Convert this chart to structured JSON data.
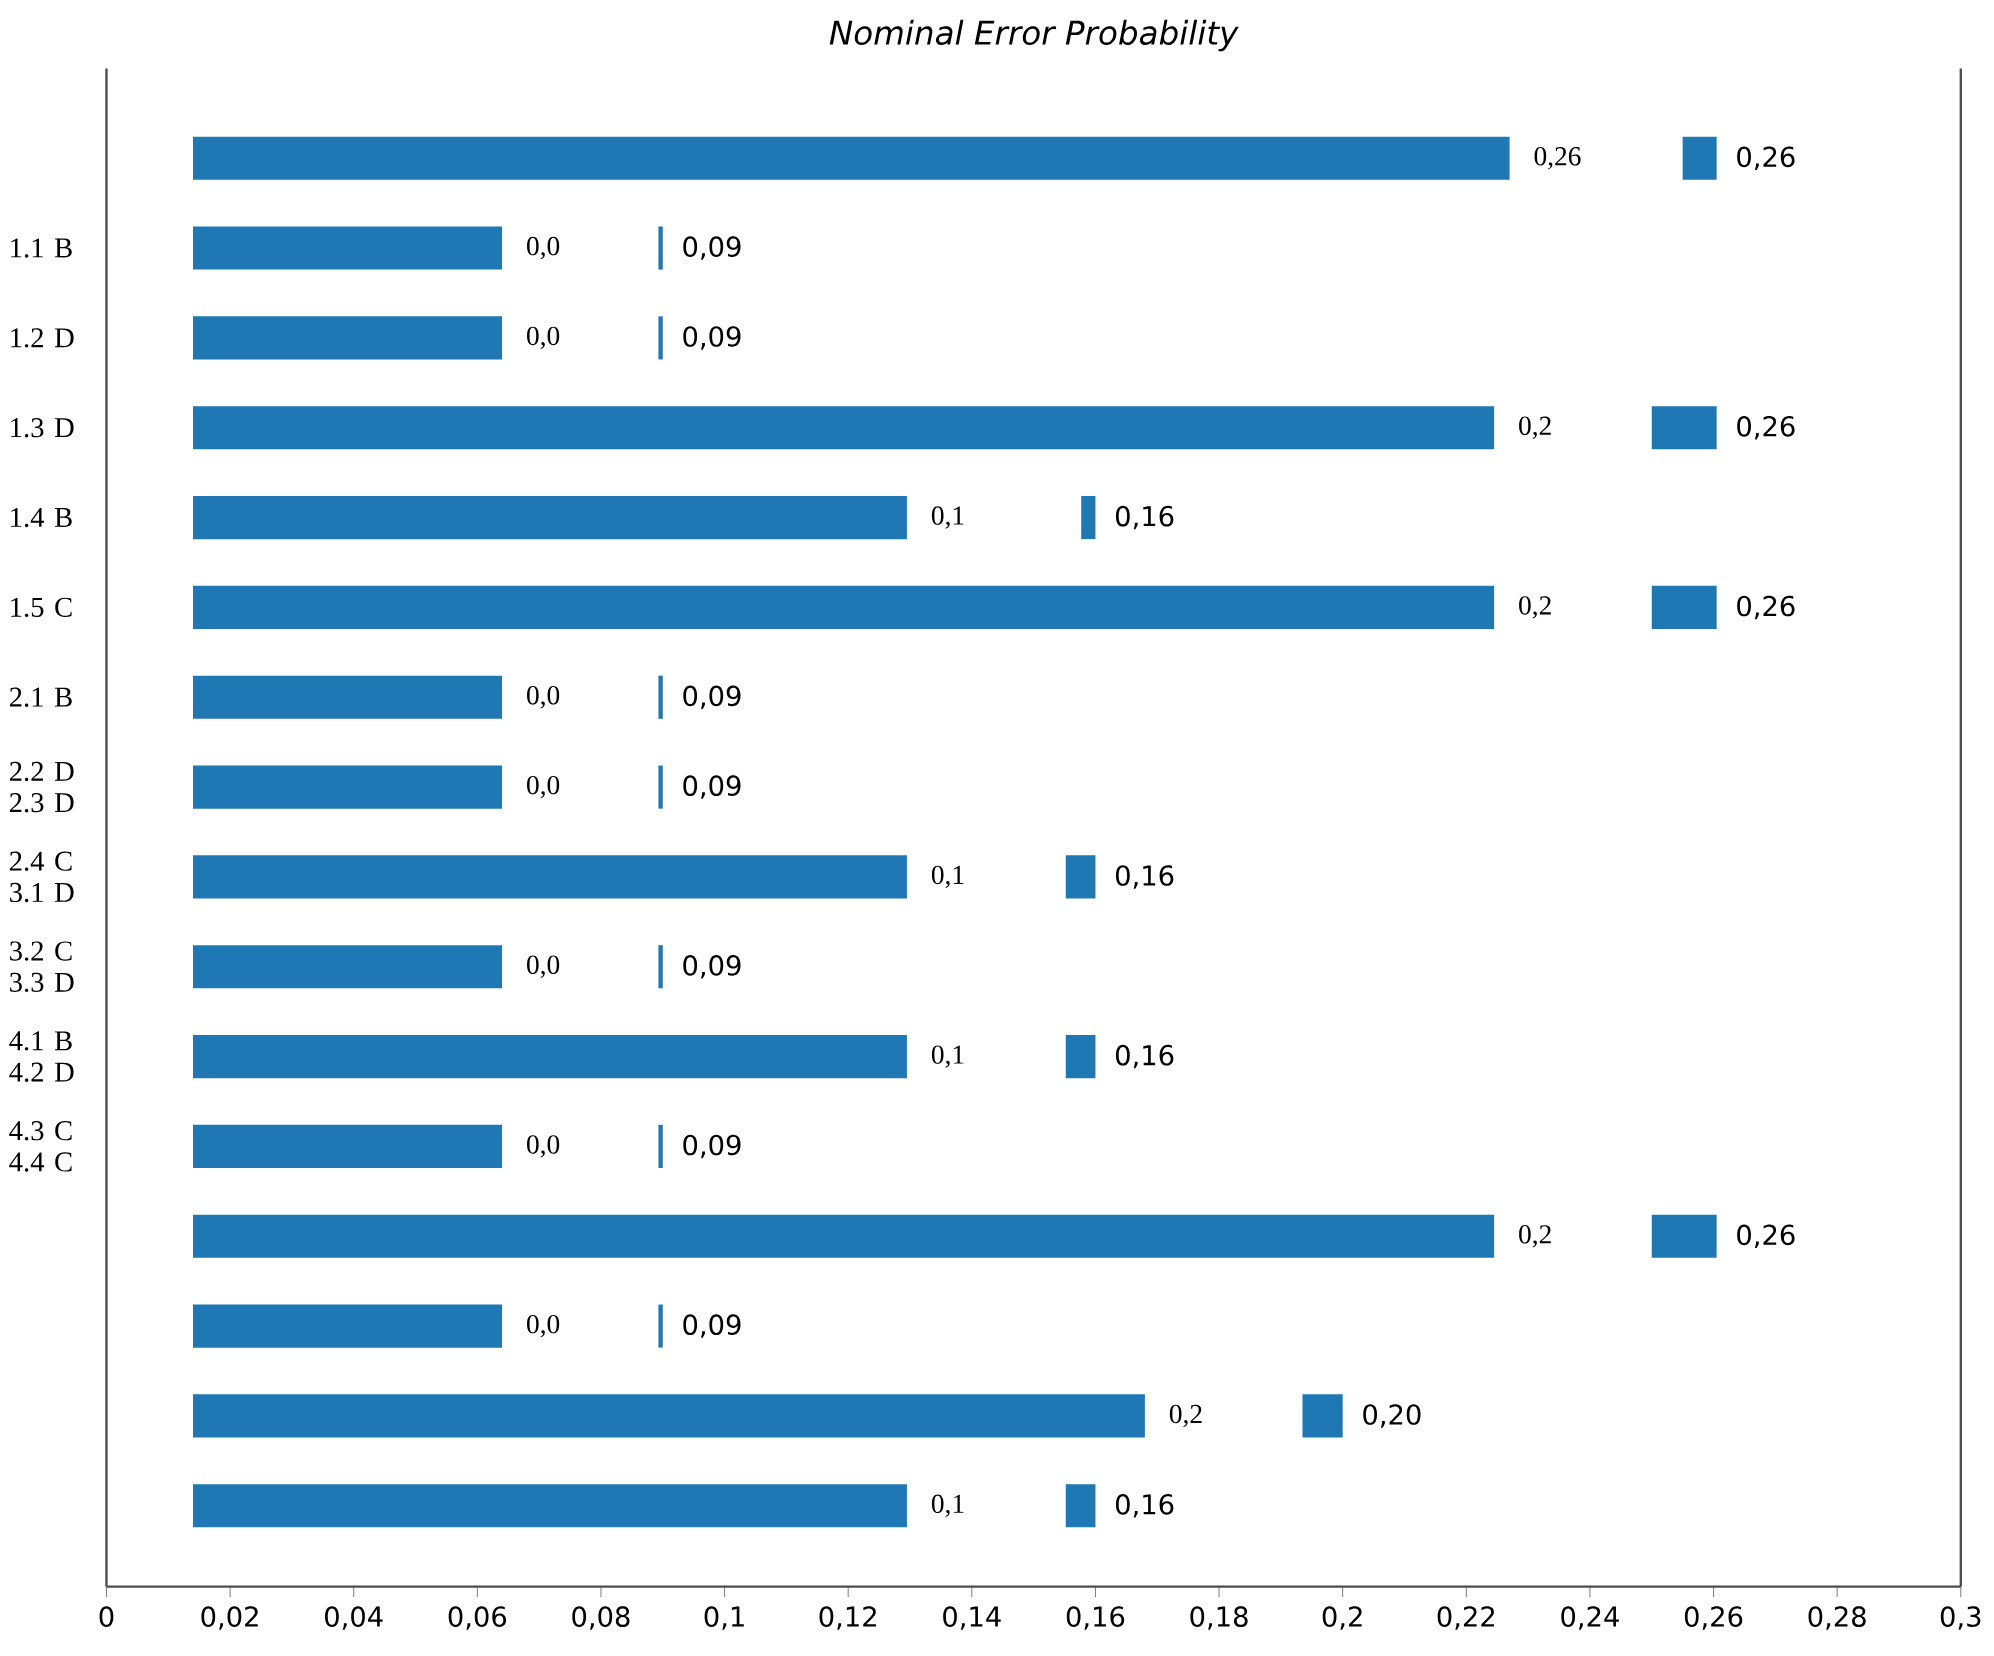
{
  "chart_data": {
    "type": "bar",
    "orientation": "horizontal",
    "title": "Nominal Error Probability",
    "categories": [
      null,
      "1.1 B",
      "1.2 D",
      "1.3 D",
      "1.4 B",
      "1.5 C",
      "2.1 B",
      "2.2 D 2.3 D",
      "2.4 C 3.1 D",
      "3.2 C 3.3 D",
      "4.1 B 4.2 D",
      "4.3 C 4.4 C",
      null,
      null,
      null,
      null
    ],
    "series": [
      {
        "color": "#1f77b4",
        "base": [
          0.014,
          0.014,
          0.014,
          0.014,
          0.014,
          0.014,
          0.014,
          0.014,
          0.014,
          0.014,
          0.014,
          0.014,
          0.014,
          0.014,
          0.014,
          0.014
        ],
        "values": [
          0.213,
          0.05,
          0.05,
          0.2105,
          0.1155,
          0.2105,
          0.05,
          0.05,
          0.1155,
          0.05,
          0.1155,
          0.05,
          0.2105,
          0.05,
          0.154,
          0.1155
        ]
      },
      {
        "color": "#1f77b4",
        "base": [
          0.255,
          0.0893,
          0.0893,
          0.25,
          0.1577,
          0.25,
          0.0893,
          0.0893,
          0.1552,
          0.0893,
          0.1552,
          0.0893,
          0.25,
          0.0893,
          0.1935,
          0.1552
        ],
        "values": [
          0.0055,
          0.0007,
          0.0007,
          0.0105,
          0.0023,
          0.0105,
          0.0007,
          0.0007,
          0.0048,
          0.0007,
          0.0048,
          0.0007,
          0.0105,
          0.0007,
          0.0065,
          0.0048
        ],
        "value_labels": [
          "0,26",
          "0,09",
          "0,09",
          "0,26",
          "0,16",
          "0,26",
          "0,09",
          "0,09",
          "0,16",
          "0,09",
          "0,16",
          "0,09",
          "0,26",
          "0,09",
          "0,20",
          "0,16"
        ]
      }
    ],
    "annotations": [
      "0,26",
      "0,0",
      "0,0",
      "0,2",
      "0,1",
      "0,2",
      "0,0",
      "0,0",
      "0,1",
      "0,0",
      "0,1",
      "0,0",
      "0,2",
      "0,0",
      "0,2",
      "0,1"
    ],
    "xlim": [
      0,
      0.3
    ],
    "xticks": [
      0,
      {
        "value": 0.02,
        "label": "0,02"
      },
      {
        "value": 0.04,
        "label": "0,04"
      },
      {
        "value": 0.06,
        "label": "0,06"
      },
      {
        "value": 0.08,
        "label": "0,08"
      },
      {
        "value": 0.1,
        "label": "0,1"
      },
      {
        "value": 0.12,
        "label": "0,12"
      },
      {
        "value": 0.14,
        "label": "0,14"
      },
      {
        "value": 0.16,
        "label": "0,16"
      },
      {
        "value": 0.18,
        "label": "0,18"
      },
      {
        "value": 0.2,
        "label": "0,2"
      },
      {
        "value": 0.22,
        "label": "0,22"
      },
      {
        "value": 0.24,
        "label": "0,24"
      },
      {
        "value": 0.26,
        "label": "0,26"
      },
      {
        "value": 0.28,
        "label": "0,28"
      },
      {
        "value": 0.3,
        "label": "0,3"
      }
    ]
  }
}
